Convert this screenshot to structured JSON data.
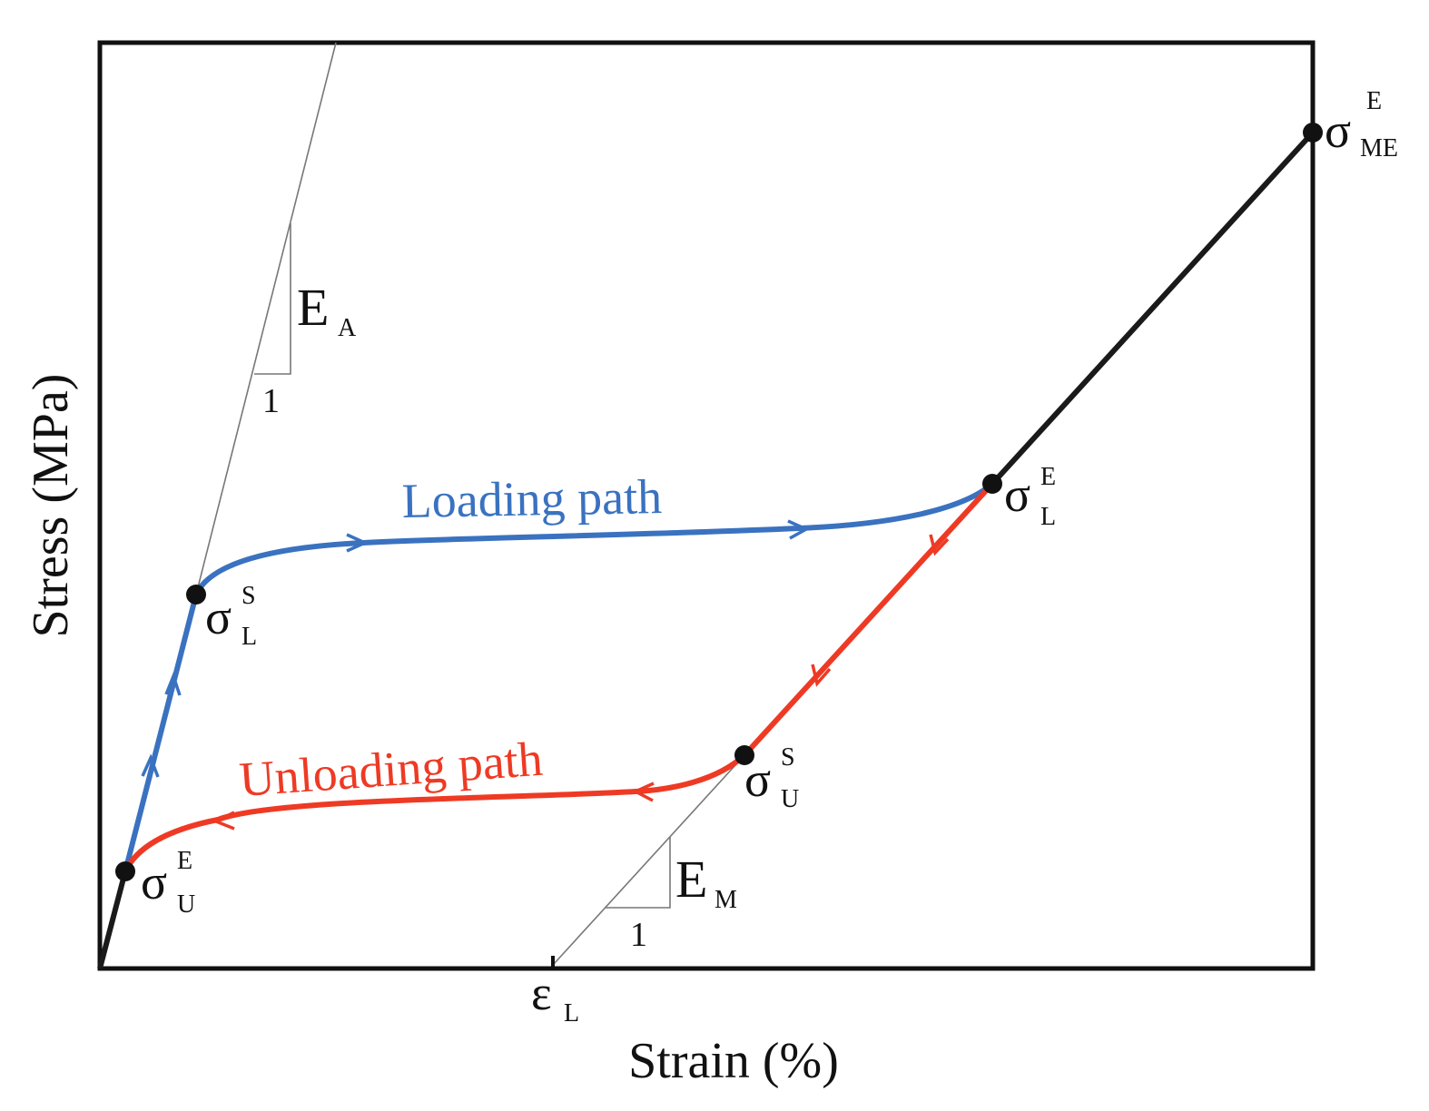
{
  "axes": {
    "xlabel": "Strain (%)",
    "ylabel": "Stress (MPa)"
  },
  "colors": {
    "loading": "#3a72c0",
    "unloading": "#ee3a24",
    "elastic": "#1a1a1a",
    "guide": "#777777"
  },
  "labels": {
    "loading_path": "Loading path",
    "unloading_path": "Unloading path"
  },
  "points": {
    "sigma_L_S": {
      "symbol": "σ",
      "sup": "S",
      "sub": "L"
    },
    "sigma_L_E": {
      "symbol": "σ",
      "sup": "E",
      "sub": "L"
    },
    "sigma_U_S": {
      "symbol": "σ",
      "sup": "S",
      "sub": "U"
    },
    "sigma_U_E": {
      "symbol": "σ",
      "sup": "E",
      "sub": "U"
    },
    "sigma_ME_E": {
      "symbol": "σ",
      "sup": "E",
      "sub": "ME"
    }
  },
  "slopes": {
    "austenite": {
      "symbol": "E",
      "sub": "A",
      "run": "1"
    },
    "martensite": {
      "symbol": "E",
      "sub": "M",
      "run": "1"
    }
  },
  "strain_marker": {
    "symbol": "ε",
    "sub": "L"
  }
}
